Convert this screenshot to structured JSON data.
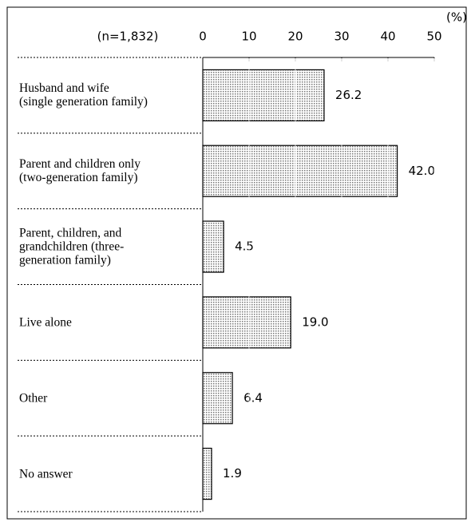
{
  "chart_data": {
    "type": "bar",
    "orientation": "horizontal",
    "subtitle": "(n=1,832)",
    "unit_label": "(%)",
    "categories": [
      "Husband and wife\n(single generation family)",
      "Parent and children only\n(two-generation family)",
      "Parent, children, and\ngrandchildren (three-\ngeneration family)",
      "Live alone",
      "Other",
      "No answer"
    ],
    "values": [
      26.2,
      42.0,
      4.5,
      19.0,
      6.4,
      1.9
    ],
    "value_labels": [
      "26.2",
      "42.0",
      "4.5",
      "19.0",
      "6.4",
      "1.9"
    ],
    "xlim": [
      0,
      50
    ],
    "xticks": [
      0,
      10,
      20,
      30,
      40,
      50
    ],
    "grid": true,
    "color": "#c8c8c8"
  }
}
